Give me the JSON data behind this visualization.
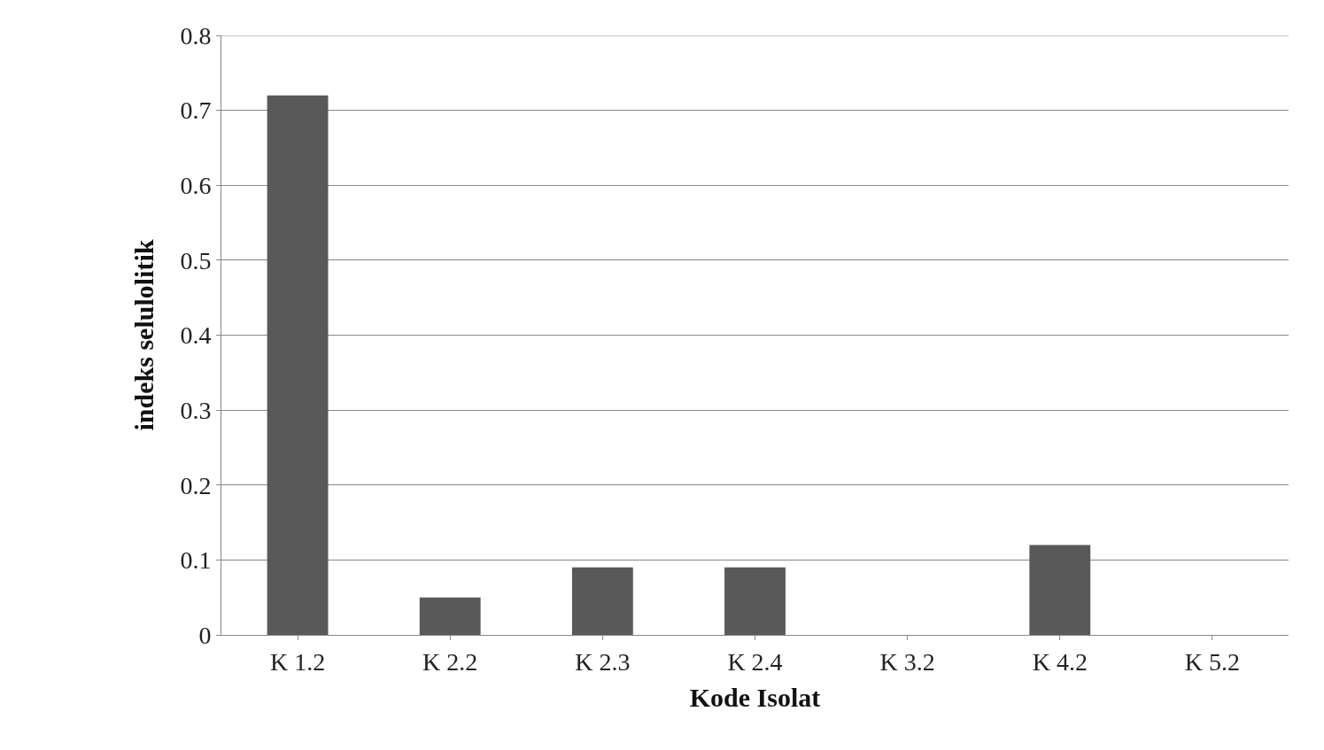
{
  "chart_data": {
    "type": "bar",
    "xlabel": "Kode Isolat",
    "ylabel": "indeks selulolitik",
    "categories": [
      "K 1.2",
      "K 2.2",
      "K 2.3",
      "K 2.4",
      "K 3.2",
      "K 4.2",
      "K 5.2"
    ],
    "values": [
      0.72,
      0.05,
      0.09,
      0.09,
      0,
      0.12,
      0
    ],
    "color": "#595959",
    "ylim": [
      0,
      0.8
    ],
    "yticks": [
      0,
      0.1,
      0.2,
      0.3,
      0.4,
      0.5,
      0.6,
      0.7,
      0.8
    ],
    "grid": "y"
  }
}
